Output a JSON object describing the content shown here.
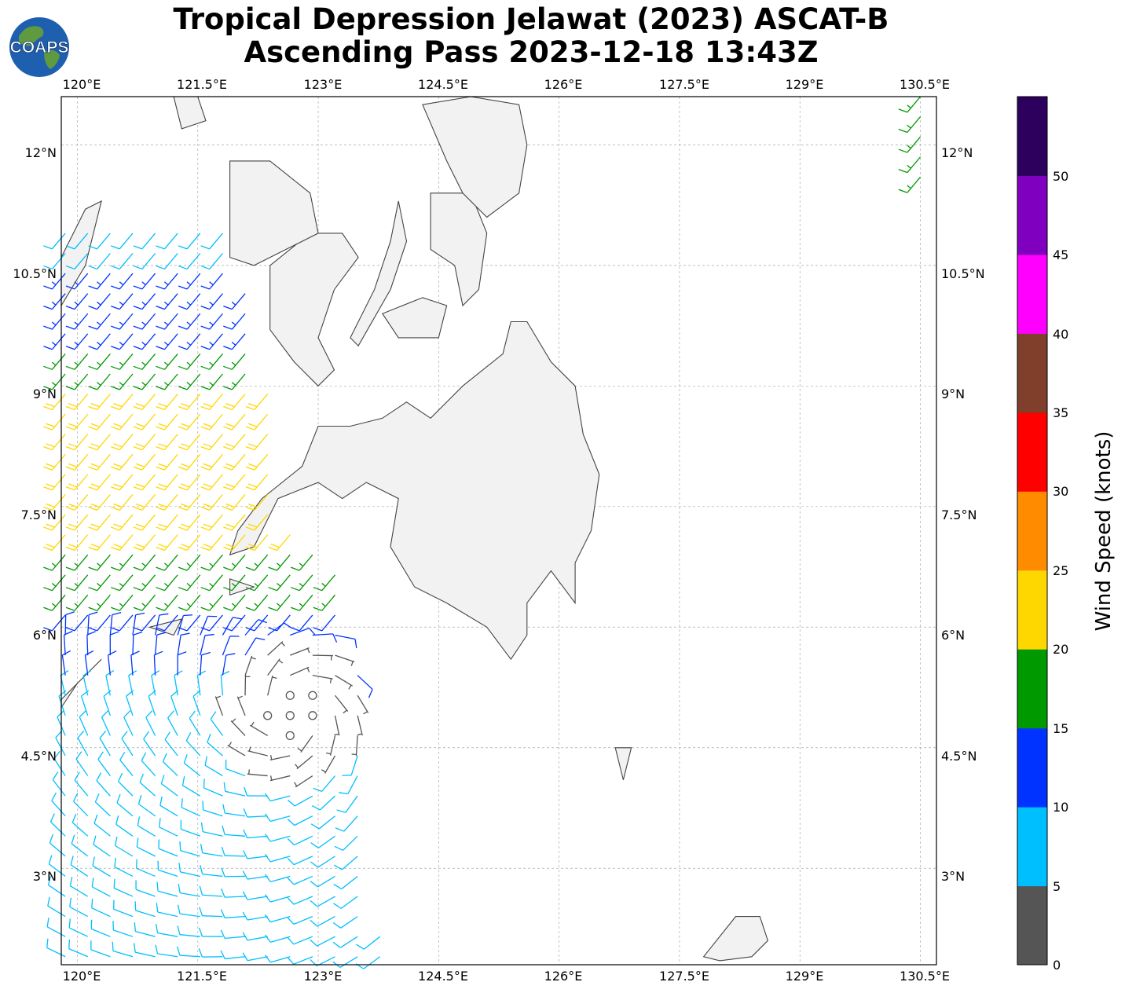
{
  "title": {
    "line1": "Tropical Depression Jelawat (2023) ASCAT-B",
    "line2": "Ascending Pass 2023-12-18 13:43Z"
  },
  "logo": {
    "text": "COAPS",
    "globe_color": "#1f5fb0",
    "land_color": "#5f9a3f"
  },
  "map": {
    "lon_range": [
      119.8,
      130.7
    ],
    "lat_range": [
      1.8,
      12.6
    ],
    "lon_ticks": [
      "120°E",
      "121.5°E",
      "123°E",
      "124.5°E",
      "126°E",
      "127.5°E",
      "129°E",
      "130.5°E"
    ],
    "lat_ticks": [
      "12°N",
      "10.5°N",
      "9°N",
      "7.5°N",
      "6°N",
      "4.5°N",
      "3°N"
    ],
    "gridlines": true,
    "land_fill": "#f2f2f2",
    "coast_color": "#444444"
  },
  "colorbar": {
    "label": "Wind Speed (knots)",
    "tick_labels": [
      "0",
      "5",
      "10",
      "15",
      "20",
      "25",
      "30",
      "35",
      "40",
      "45",
      "50"
    ],
    "colors": [
      "#555555",
      "#00bfff",
      "#0033ff",
      "#009900",
      "#ffd700",
      "#ff8c00",
      "#ff0000",
      "#7f3f2a",
      "#ff00ff",
      "#8000bf",
      "#2e005e"
    ]
  },
  "wind_field": {
    "center": {
      "lon": 122.7,
      "lat": 4.95
    },
    "calm_radius_deg": 0.35,
    "swath_east_edge": [
      [
        121.8,
        11.1
      ],
      [
        122.3,
        9.5
      ],
      [
        122.5,
        8.2
      ],
      [
        122.5,
        7.3
      ],
      [
        123.2,
        6.7
      ],
      [
        123.5,
        5.6
      ],
      [
        123.7,
        3.5
      ],
      [
        123.8,
        1.85
      ]
    ],
    "speed_bands_kt": [
      {
        "lat_min": 10.5,
        "lat_max": 11.1,
        "speed": 8
      },
      {
        "lat_min": 9.6,
        "lat_max": 10.5,
        "speed": 14
      },
      {
        "lat_min": 9.0,
        "lat_max": 9.6,
        "speed": 17
      },
      {
        "lat_min": 7.0,
        "lat_max": 9.0,
        "speed": 22
      },
      {
        "lat_min": 6.3,
        "lat_max": 7.0,
        "speed": 17
      },
      {
        "lat_min": 5.3,
        "lat_max": 6.3,
        "speed": 12
      },
      {
        "lat_min": 1.8,
        "lat_max": 5.3,
        "speed": 8
      }
    ],
    "east_edge_swath": {
      "lon": 130.5,
      "lat_min": 11.6,
      "lat_max": 12.6,
      "speed": 17
    }
  }
}
